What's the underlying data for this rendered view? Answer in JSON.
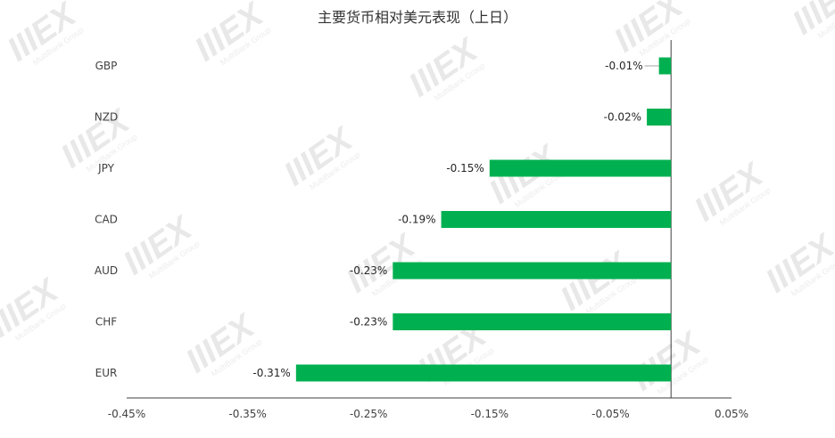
{
  "watermark": {
    "text": "IIIEX",
    "subtext": "MultiBank Group"
  },
  "chart_data": {
    "type": "bar",
    "orientation": "horizontal",
    "title": "主要货币相对美元表现（上日）",
    "xlabel": "",
    "ylabel": "",
    "categories": [
      "GBP",
      "NZD",
      "JPY",
      "CAD",
      "AUD",
      "CHF",
      "EUR"
    ],
    "values": [
      -0.0001,
      -0.0002,
      -0.0015,
      -0.0019,
      -0.0023,
      -0.0023,
      -0.0031
    ],
    "data_labels": [
      "-0.01%",
      "-0.02%",
      "-0.15%",
      "-0.19%",
      "-0.23%",
      "-0.23%",
      "-0.31%"
    ],
    "xlim": [
      -0.0045,
      0.0005
    ],
    "x_ticks": [
      -0.0045,
      -0.0035,
      -0.0025,
      -0.0015,
      -0.0005,
      0.0005
    ],
    "x_tick_labels": [
      "-0.45%",
      "-0.35%",
      "-0.25%",
      "-0.15%",
      "-0.05%",
      "0.05%"
    ],
    "bar_color": "#00b050",
    "grid": false,
    "legend": "none"
  }
}
